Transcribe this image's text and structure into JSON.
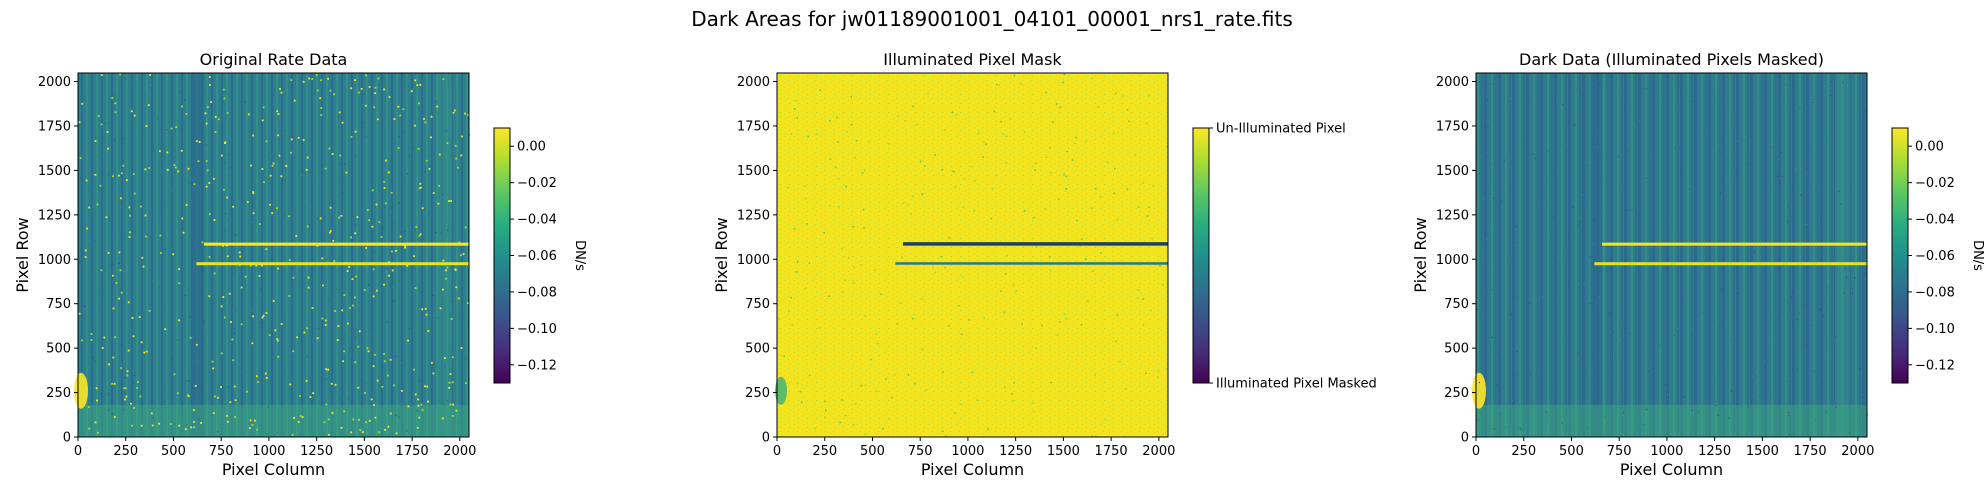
{
  "figure": {
    "suptitle": "Dark Areas for jw01189001001_04101_00001_nrs1_rate.fits"
  },
  "chart_data": [
    {
      "type": "heatmap",
      "title": "Original Rate Data",
      "xlabel": "Pixel Column",
      "ylabel": "Pixel Row",
      "xlim": [
        0,
        2048
      ],
      "ylim": [
        0,
        2048
      ],
      "xticks": [
        0,
        250,
        500,
        750,
        1000,
        1250,
        1500,
        1750,
        2000
      ],
      "yticks": [
        0,
        250,
        500,
        750,
        1000,
        1250,
        1500,
        1750,
        2000
      ],
      "colormap": "viridis",
      "colorbar": {
        "label": "DN/s",
        "range": [
          -0.13,
          0.01
        ],
        "ticks": [
          0.0,
          -0.02,
          -0.04,
          -0.06,
          -0.08,
          -0.1,
          -0.12
        ],
        "tick_labels": [
          "0.00",
          "−0.02",
          "−0.04",
          "−0.06",
          "−0.08",
          "−0.10",
          "−0.12"
        ]
      },
      "features": {
        "background_value": -0.05,
        "bright_streaks": [
          {
            "row": 1085,
            "col_start": 660,
            "col_end": 2048,
            "value": 0.01
          },
          {
            "row": 975,
            "col_start": 620,
            "col_end": 2048,
            "value": 0.005
          }
        ],
        "hot_pixels": "scattered",
        "dark_band_columns": [
          600,
          660
        ]
      }
    },
    {
      "type": "heatmap",
      "title": "Illuminated Pixel Mask",
      "xlabel": "Pixel Column",
      "ylabel": "Pixel Row",
      "xlim": [
        0,
        2048
      ],
      "ylim": [
        0,
        2048
      ],
      "xticks": [
        0,
        250,
        500,
        750,
        1000,
        1250,
        1500,
        1750,
        2000
      ],
      "yticks": [
        0,
        250,
        500,
        750,
        1000,
        1250,
        1500,
        1750,
        2000
      ],
      "colormap": "viridis",
      "colorbar": {
        "range": [
          0,
          1
        ],
        "ticks": [
          1,
          0
        ],
        "tick_labels": [
          "Un-Illuminated Pixel",
          "Illuminated Pixel Masked"
        ]
      },
      "features": {
        "background_value": 1,
        "masked_streaks": [
          {
            "row": 1085,
            "col_start": 660,
            "col_end": 2048
          },
          {
            "row": 975,
            "col_start": 620,
            "col_end": 2048
          }
        ]
      }
    },
    {
      "type": "heatmap",
      "title": "Dark Data (Illuminated Pixels Masked)",
      "xlabel": "Pixel Column",
      "ylabel": "Pixel Row",
      "xlim": [
        0,
        2048
      ],
      "ylim": [
        0,
        2048
      ],
      "xticks": [
        0,
        250,
        500,
        750,
        1000,
        1250,
        1500,
        1750,
        2000
      ],
      "yticks": [
        0,
        250,
        500,
        750,
        1000,
        1250,
        1500,
        1750,
        2000
      ],
      "colormap": "viridis",
      "colorbar": {
        "label": "DN/s",
        "range": [
          -0.13,
          0.01
        ],
        "ticks": [
          0.0,
          -0.02,
          -0.04,
          -0.06,
          -0.08,
          -0.1,
          -0.12
        ],
        "tick_labels": [
          "0.00",
          "−0.02",
          "−0.04",
          "−0.06",
          "−0.08",
          "−0.10",
          "−0.12"
        ]
      },
      "features": {
        "background_value": -0.055,
        "bright_streaks": [
          {
            "row": 1085,
            "col_start": 660,
            "col_end": 2048,
            "value": 0.008
          },
          {
            "row": 975,
            "col_start": 620,
            "col_end": 2048,
            "value": 0.004
          }
        ],
        "hot_pixels": "none"
      }
    }
  ]
}
